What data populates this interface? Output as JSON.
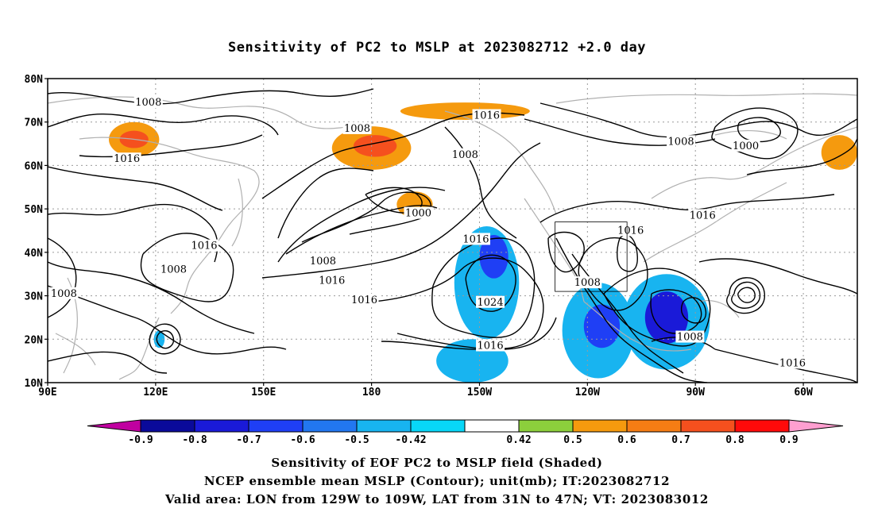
{
  "title": "Sensitivity of PC2 to MSLP at 2023082712 +2.0 day",
  "map": {
    "lon_range": [
      "90E",
      "45W"
    ],
    "lat_range": [
      "10N",
      "80N"
    ],
    "y_ticks": [
      "80N",
      "70N",
      "60N",
      "50N",
      "40N",
      "30N",
      "20N",
      "10N"
    ],
    "x_ticks": [
      "90E",
      "120E",
      "150E",
      "180",
      "150W",
      "120W",
      "90W",
      "60W"
    ],
    "grid": "dotted",
    "coastlines": true,
    "valid_box": {
      "lon": [
        "129W",
        "109W"
      ],
      "lat": [
        "31N",
        "47N"
      ]
    }
  },
  "contour_labels": [
    {
      "text": "1008",
      "lon": 118,
      "lat": 74.5
    },
    {
      "text": "1016",
      "lon": 112,
      "lat": 61.5
    },
    {
      "text": "1016",
      "lon": 212,
      "lat": 71.5
    },
    {
      "text": "1008",
      "lon": 176,
      "lat": 68.5
    },
    {
      "text": "1008",
      "lon": 206,
      "lat": 62.5
    },
    {
      "text": "1008",
      "lon": 266,
      "lat": 65.5
    },
    {
      "text": "1000",
      "lon": 284,
      "lat": 64.5
    },
    {
      "text": "1000",
      "lon": 193,
      "lat": 49
    },
    {
      "text": "1016",
      "lon": 252,
      "lat": 45
    },
    {
      "text": "1016",
      "lon": 209,
      "lat": 43
    },
    {
      "text": "1016",
      "lon": 272,
      "lat": 48.5
    },
    {
      "text": "1016",
      "lon": 133.5,
      "lat": 41.5
    },
    {
      "text": "1008",
      "lon": 166.5,
      "lat": 38
    },
    {
      "text": "1008",
      "lon": 125,
      "lat": 36
    },
    {
      "text": "1016",
      "lon": 169,
      "lat": 33.5
    },
    {
      "text": "1016",
      "lon": 178,
      "lat": 29
    },
    {
      "text": "1008",
      "lon": 94.5,
      "lat": 30.5
    },
    {
      "text": "1024",
      "lon": 213,
      "lat": 28.5
    },
    {
      "text": "1008",
      "lon": 240,
      "lat": 33
    },
    {
      "text": "1016",
      "lon": 213,
      "lat": 18.5
    },
    {
      "text": "1008",
      "lon": 268.5,
      "lat": 20.5
    },
    {
      "text": "1016",
      "lon": 297,
      "lat": 14.5
    }
  ],
  "shaded_regions": [
    {
      "sign": "positive",
      "level": "0.5",
      "lon": 114,
      "lat": 66,
      "rx": 7,
      "ry": 4
    },
    {
      "sign": "positive",
      "level": "0.7",
      "lon": 114,
      "lat": 66,
      "rx": 4,
      "ry": 2
    },
    {
      "sign": "positive",
      "level": "0.5",
      "lon": 180,
      "lat": 64,
      "rx": 11,
      "ry": 5
    },
    {
      "sign": "positive",
      "level": "0.7",
      "lon": 181,
      "lat": 64.5,
      "rx": 6,
      "ry": 2.5
    },
    {
      "sign": "positive",
      "level": "0.5",
      "lon": 192,
      "lat": 51,
      "rx": 5,
      "ry": 3
    },
    {
      "sign": "positive",
      "level": "0.5",
      "lon": 206,
      "lat": 72.5,
      "rx": 18,
      "ry": 2
    },
    {
      "sign": "positive",
      "level": "0.5",
      "lon": 310,
      "lat": 63,
      "rx": 5,
      "ry": 4
    },
    {
      "sign": "negative",
      "level": "-0.5",
      "lon": 212,
      "lat": 33,
      "rx": 9,
      "ry": 13
    },
    {
      "sign": "negative",
      "level": "-0.7",
      "lon": 214,
      "lat": 39,
      "rx": 4,
      "ry": 5
    },
    {
      "sign": "negative",
      "level": "-0.5",
      "lon": 208,
      "lat": 15,
      "rx": 10,
      "ry": 5
    },
    {
      "sign": "negative",
      "level": "-0.5",
      "lon": 243,
      "lat": 22,
      "rx": 10,
      "ry": 11
    },
    {
      "sign": "negative",
      "level": "-0.7",
      "lon": 244,
      "lat": 23,
      "rx": 5,
      "ry": 5
    },
    {
      "sign": "negative",
      "level": "-0.5",
      "lon": 262,
      "lat": 24,
      "rx": 12,
      "ry": 11
    },
    {
      "sign": "negative",
      "level": "-0.8",
      "lon": 262,
      "lat": 25,
      "rx": 6,
      "ry": 6
    },
    {
      "sign": "negative",
      "level": "-0.5",
      "lon": 121,
      "lat": 20,
      "rx": 1.5,
      "ry": 2
    }
  ],
  "colorbar": {
    "labels": [
      "-0.9",
      "-0.8",
      "-0.7",
      "-0.6",
      "-0.5",
      "-0.42",
      "0.42",
      "0.5",
      "0.6",
      "0.7",
      "0.8",
      "0.9"
    ],
    "colors": {
      "below": "#c000a0",
      "-0.9": "#0a0a9a",
      "-0.8": "#1a1ad8",
      "-0.7": "#1f3ff5",
      "-0.6": "#2277f0",
      "-0.5": "#18b4f0",
      "-0.42": "#08d7f8",
      "neutral": "#ffffff",
      "0.42": "#8ccf3c",
      "0.5": "#f59a0e",
      "0.6": "#f57d14",
      "0.7": "#f5501e",
      "0.8": "#ff0a0a",
      "above": "#ff9fd0"
    }
  },
  "captions": [
    "Sensitivity of EOF PC2 to MSLP field (Shaded)",
    "NCEP ensemble mean MSLP (Contour); unit(mb); IT:2023082712",
    "Valid area: LON from 129W to 109W, LAT from 31N to 47N; VT: 2023083012"
  ]
}
